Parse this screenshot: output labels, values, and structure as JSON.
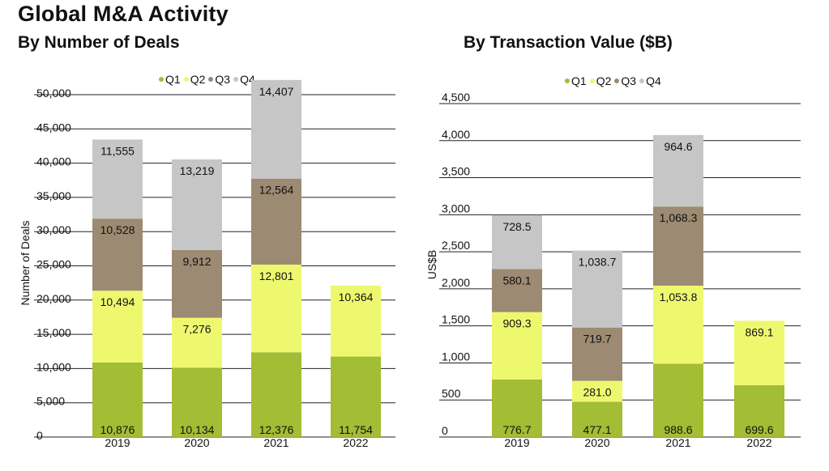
{
  "header": {
    "title": "Global M&A Activity"
  },
  "colors": {
    "Q1": "#a3bd34",
    "Q2": "#eef86f",
    "Q3": "#9c8a72",
    "Q4": "#c6c6c6",
    "grid": "#222222"
  },
  "chart_data": [
    {
      "type": "bar",
      "stacked": true,
      "title": "By Number of Deals",
      "ylabel": "Number of Deals",
      "xlabel": "",
      "categories": [
        "2019",
        "2020",
        "2021",
        "2022"
      ],
      "ylim": [
        0,
        50000
      ],
      "yticks": [
        "0",
        "5,000",
        "10,000",
        "15,000",
        "20,000",
        "25,000",
        "30,000",
        "35,000",
        "40,000",
        "45,000",
        "50,000"
      ],
      "legend_position": "top",
      "grid": true,
      "series": [
        {
          "name": "Q1",
          "values": [
            10876,
            10134,
            12376,
            11754
          ],
          "labels": [
            "10,876",
            "10,134",
            "12,376",
            "11,754"
          ]
        },
        {
          "name": "Q2",
          "values": [
            10494,
            7276,
            12801,
            10364
          ],
          "labels": [
            "10,494",
            "7,276",
            "12,801",
            "10,364"
          ]
        },
        {
          "name": "Q3",
          "values": [
            10528,
            9912,
            12564,
            0
          ],
          "labels": [
            "10,528",
            "9,912",
            "12,564",
            ""
          ]
        },
        {
          "name": "Q4",
          "values": [
            11555,
            13219,
            14407,
            0
          ],
          "labels": [
            "11,555",
            "13,219",
            "14,407",
            ""
          ]
        }
      ]
    },
    {
      "type": "bar",
      "stacked": true,
      "title": "By Transaction Value ($B)",
      "ylabel": "US$B",
      "xlabel": "",
      "categories": [
        "2019",
        "2020",
        "2021",
        "2022"
      ],
      "ylim": [
        0,
        4500
      ],
      "yticks": [
        "0",
        "500",
        "1,000",
        "1,500",
        "2,000",
        "2,500",
        "3,000",
        "3,500",
        "4,000",
        "4,500"
      ],
      "legend_position": "top",
      "grid": true,
      "series": [
        {
          "name": "Q1",
          "values": [
            776.7,
            477.1,
            988.6,
            699.6
          ],
          "labels": [
            "776.7",
            "477.1",
            "988.6",
            "699.6"
          ]
        },
        {
          "name": "Q2",
          "values": [
            909.3,
            281.0,
            1053.8,
            869.1
          ],
          "labels": [
            "909.3",
            "281.0",
            "1,053.8",
            "869.1"
          ]
        },
        {
          "name": "Q3",
          "values": [
            580.1,
            719.7,
            1068.3,
            0
          ],
          "labels": [
            "580.1",
            "719.7",
            "1,068.3",
            ""
          ]
        },
        {
          "name": "Q4",
          "values": [
            728.5,
            1038.7,
            964.6,
            0
          ],
          "labels": [
            "728.5",
            "1,038.7",
            "964.6",
            ""
          ]
        }
      ]
    }
  ]
}
